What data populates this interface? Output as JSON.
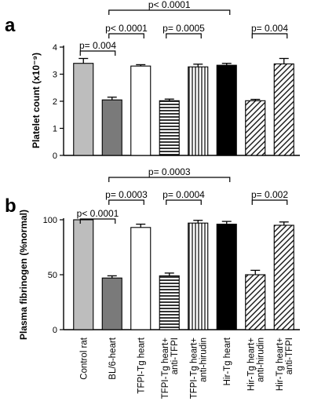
{
  "chart_data": [
    {
      "type": "bar",
      "panel": "a",
      "ylabel": "Platelet count (x10⁻⁹)",
      "ylim": [
        0,
        4
      ],
      "yticks": [
        0,
        1,
        2,
        3,
        4
      ],
      "categories": [
        "Control rat",
        "BL/6-heart",
        "TFPI-Tg heart",
        "TFPI-Tg heart+ anti-TFPI",
        "TFPI-Tg heart+ anti-hirudin",
        "Hir-Tg heart",
        "Hir-Tg heart+ anti-hirudin",
        "Hir-Tg heart+ anti-TFPI"
      ],
      "values": [
        3.4,
        2.05,
        3.3,
        2.02,
        3.27,
        3.33,
        2.02,
        3.38
      ],
      "errors": [
        0.18,
        0.1,
        0.05,
        0.06,
        0.1,
        0.07,
        0.05,
        0.2
      ],
      "fills": [
        "light-gray",
        "dark-gray",
        "white",
        "horizontal-stripes",
        "vertical-stripes",
        "black",
        "diagonal-stripes",
        "diagonal-stripes"
      ],
      "comparisons": [
        {
          "from": 0,
          "to": 1,
          "label": "p= 0.004"
        },
        {
          "from": 1,
          "to": 2,
          "label": "p< 0.0001"
        },
        {
          "from": 3,
          "to": 4,
          "label": "p= 0.0005"
        },
        {
          "from": 1,
          "to": 5,
          "label": "p< 0.0001"
        },
        {
          "from": 6,
          "to": 7,
          "label": "p= 0.004"
        }
      ]
    },
    {
      "type": "bar",
      "panel": "b",
      "ylabel": "Plasma fibrinogen (%normal)",
      "ylim": [
        0,
        100
      ],
      "yticks": [
        0,
        50,
        100
      ],
      "categories": [
        "Control rat",
        "BL/6-heart",
        "TFPI-Tg heart",
        "TFPI-Tg heart+ anti-TFPI",
        "TFPI-Tg heart+ anti-hirudin",
        "Hir-Tg heart",
        "Hir-Tg heart+ anti-hirudin",
        "Hir-Tg heart+ anti-TFPI"
      ],
      "values": [
        100,
        47,
        93,
        49,
        97,
        96,
        50,
        95
      ],
      "errors": [
        0,
        2,
        3,
        2.5,
        2.5,
        2.5,
        4,
        3
      ],
      "fills": [
        "light-gray",
        "dark-gray",
        "white",
        "horizontal-stripes",
        "vertical-stripes",
        "black",
        "diagonal-stripes",
        "diagonal-stripes"
      ],
      "comparisons": [
        {
          "from": 0,
          "to": 1,
          "label": "p< 0.0001"
        },
        {
          "from": 1,
          "to": 2,
          "label": "p= 0.0003"
        },
        {
          "from": 3,
          "to": 4,
          "label": "p= 0.0004"
        },
        {
          "from": 1,
          "to": 5,
          "label": "p= 0.0003"
        },
        {
          "from": 6,
          "to": 7,
          "label": "p= 0.002"
        }
      ]
    }
  ],
  "colors": {
    "light-gray": "#bdbdbd",
    "dark-gray": "#7a7a7a",
    "white": "#ffffff",
    "black": "#000000",
    "axis": "#000000"
  }
}
